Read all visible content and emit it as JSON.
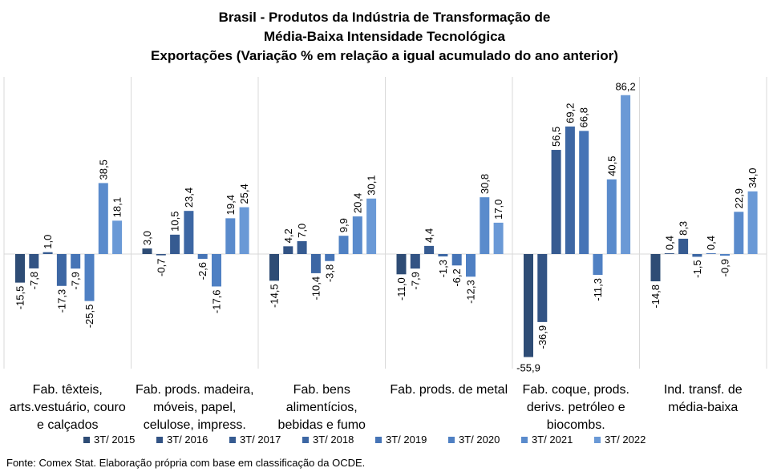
{
  "title": {
    "line1": "Brasil - Produtos da Indústria de Transformação de",
    "line2": "Média-Baixa Intensidade Tecnológica",
    "line3": "Exportações (Variação % em relação a igual acumulado do ano anterior)"
  },
  "source": "Fonte: Comex Stat. Elaboração própria com base em classificação da OCDE.",
  "colors": {
    "series": [
      "#2e4c75",
      "#325384",
      "#365b91",
      "#3d67a4",
      "#4674b6",
      "#4f80c3",
      "#5a8bcc",
      "#6a99d6"
    ]
  },
  "chart_data": {
    "type": "bar",
    "categories": [
      [
        "Fab. têxteis,",
        "arts.vestuário, couro",
        "e calçados"
      ],
      [
        "Fab. prods. madeira,",
        "móveis, papel,",
        "celulose, impress."
      ],
      [
        "Fab. bens",
        "alimentícios,",
        "bebidas e fumo"
      ],
      [
        "Fab. prods. de metal"
      ],
      [
        "Fab. coque, prods.",
        "derivs. petróleo e",
        "biocombs."
      ],
      [
        "Ind. transf. de",
        "média-baixa"
      ]
    ],
    "series": [
      {
        "name": "3T/ 2015",
        "values": [
          -15.5,
          3.0,
          -14.5,
          -11.0,
          -55.9,
          -14.8
        ],
        "labels": [
          "-15,5",
          "3,0",
          "-14,5",
          "-11,0",
          "-55,9",
          "-14,8"
        ]
      },
      {
        "name": "3T/ 2016",
        "values": [
          -7.8,
          -0.7,
          4.2,
          -7.9,
          -36.9,
          0.4
        ],
        "labels": [
          "-7,8",
          "-0,7",
          "4,2",
          "-7,9",
          "-36,9",
          "0,4"
        ]
      },
      {
        "name": "3T/ 2017",
        "values": [
          1.0,
          10.5,
          7.0,
          4.4,
          56.5,
          8.3
        ],
        "labels": [
          "1,0",
          "10,5",
          "7,0",
          "4,4",
          "56,5",
          "8,3"
        ]
      },
      {
        "name": "3T/ 2018",
        "values": [
          -17.3,
          23.4,
          -10.4,
          -1.3,
          69.2,
          -1.5
        ],
        "labels": [
          "-17,3",
          "23,4",
          "-10,4",
          "-1,3",
          "69,2",
          "-1,5"
        ]
      },
      {
        "name": "3T/ 2019",
        "values": [
          -7.9,
          -2.6,
          -3.8,
          -6.2,
          66.8,
          0.4
        ],
        "labels": [
          "-7,9",
          "-2,6",
          "-3,8",
          "-6,2",
          "66,8",
          "0,4"
        ]
      },
      {
        "name": "3T/ 2020",
        "values": [
          -25.5,
          -17.6,
          9.9,
          -12.3,
          -11.3,
          -0.9
        ],
        "labels": [
          "-25,5",
          "-17,6",
          "9,9",
          "-12,3",
          "-11,3",
          "-0,9"
        ]
      },
      {
        "name": "3T/ 2021",
        "values": [
          38.5,
          19.4,
          20.4,
          30.8,
          40.5,
          22.9
        ],
        "labels": [
          "38,5",
          "19,4",
          "20,4",
          "30,8",
          "40,5",
          "22,9"
        ]
      },
      {
        "name": "3T/ 2022",
        "values": [
          18.1,
          25.4,
          30.1,
          17.0,
          86.2,
          34.0
        ],
        "labels": [
          "18,1",
          "25,4",
          "30,1",
          "17,0",
          "86,2",
          "34,0"
        ]
      }
    ],
    "ylim": [
      -55.9,
      86.2
    ],
    "grid": false,
    "legend_position": "bottom",
    "label_rotation": "vertical except extreme values"
  }
}
